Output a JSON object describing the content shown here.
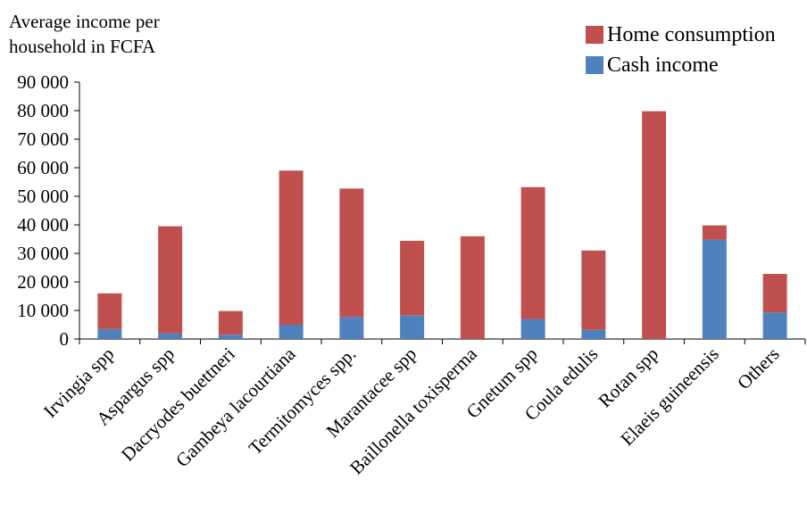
{
  "chart_data": {
    "type": "bar",
    "stacked": true,
    "ylabel": "Average income per\nhousehold in FCFA",
    "ylim": [
      0,
      90000
    ],
    "yticks": [
      "0",
      "10 000",
      "20 000",
      "30 000",
      "40 000",
      "50 000",
      "60 000",
      "70 000",
      "80 000",
      "90 000"
    ],
    "categories": [
      "Irvingia spp",
      "Aspargus spp",
      "Dacryodes buettneri",
      "Gambeya lacourtiana",
      "Termitomyces spp.",
      "Marantacee spp",
      "Baillonella toxisperma",
      "Gnetum spp",
      "Coula edulis",
      "Rotan spp",
      "Elaeis guineensis",
      "Others"
    ],
    "series": [
      {
        "name": "Cash income",
        "color": "#4f81bd",
        "values": [
          3500,
          2000,
          1500,
          5000,
          7700,
          8200,
          0,
          7000,
          3200,
          0,
          34800,
          9300
        ]
      },
      {
        "name": "Home consumption",
        "color": "#c0504d",
        "values": [
          12500,
          37500,
          8300,
          54000,
          45000,
          26200,
          36000,
          46200,
          27800,
          79800,
          5000,
          13500
        ]
      }
    ],
    "legend_position": "top-right",
    "grid": false
  }
}
